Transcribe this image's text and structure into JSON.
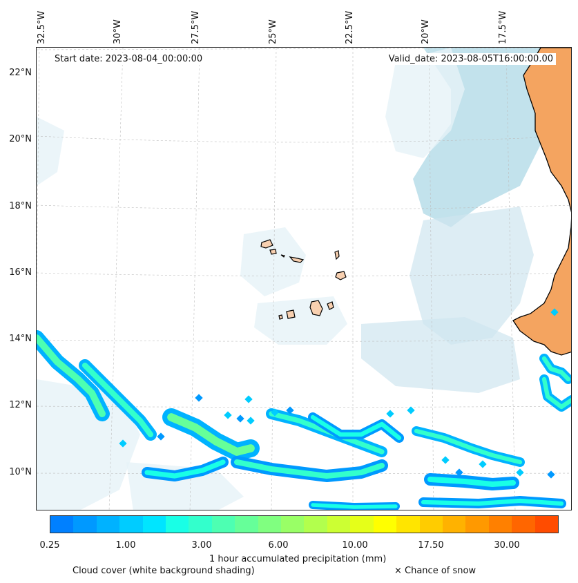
{
  "map": {
    "start_date": "Start date: 2023-08-04_00:00:00",
    "valid_date": "Valid_date: 2023-08-05T16:00:00.00",
    "lon_labels": [
      "32.5°W",
      "30°W",
      "27.5°W",
      "25°W",
      "22.5°W",
      "20°W",
      "17.5°W"
    ],
    "lat_labels": [
      "22°N",
      "20°N",
      "18°N",
      "16°N",
      "14°N",
      "12°N",
      "10°N"
    ],
    "colors": {
      "land": "#f4a460",
      "island": "#f8d0b0",
      "coast": "#000000",
      "cloud_light": "#e6f2f7",
      "cloud_mid": "#cfe6ef",
      "cloud_dark": "#add8e6",
      "grid": "#bdbdbd"
    }
  },
  "colorbar": {
    "title": "1 hour accumulated precipitation (mm)",
    "tick_labels": [
      "0.25",
      "1.00",
      "3.00",
      "6.00",
      "10.00",
      "17.50",
      "30.00"
    ],
    "colors": [
      "#0080ff",
      "#0099ff",
      "#00b2ff",
      "#00ccff",
      "#00e5ff",
      "#19ffe6",
      "#33ffcc",
      "#4dffb2",
      "#66ff99",
      "#80ff80",
      "#99ff66",
      "#b2ff4d",
      "#ccff33",
      "#e5ff19",
      "#ffff00",
      "#ffe500",
      "#ffcc00",
      "#ffb200",
      "#ff9900",
      "#ff8000",
      "#ff6600",
      "#ff4c00"
    ]
  },
  "footer": {
    "cloud_label": "Cloud cover (white background shading)",
    "snow_label": "× Chance of snow"
  }
}
